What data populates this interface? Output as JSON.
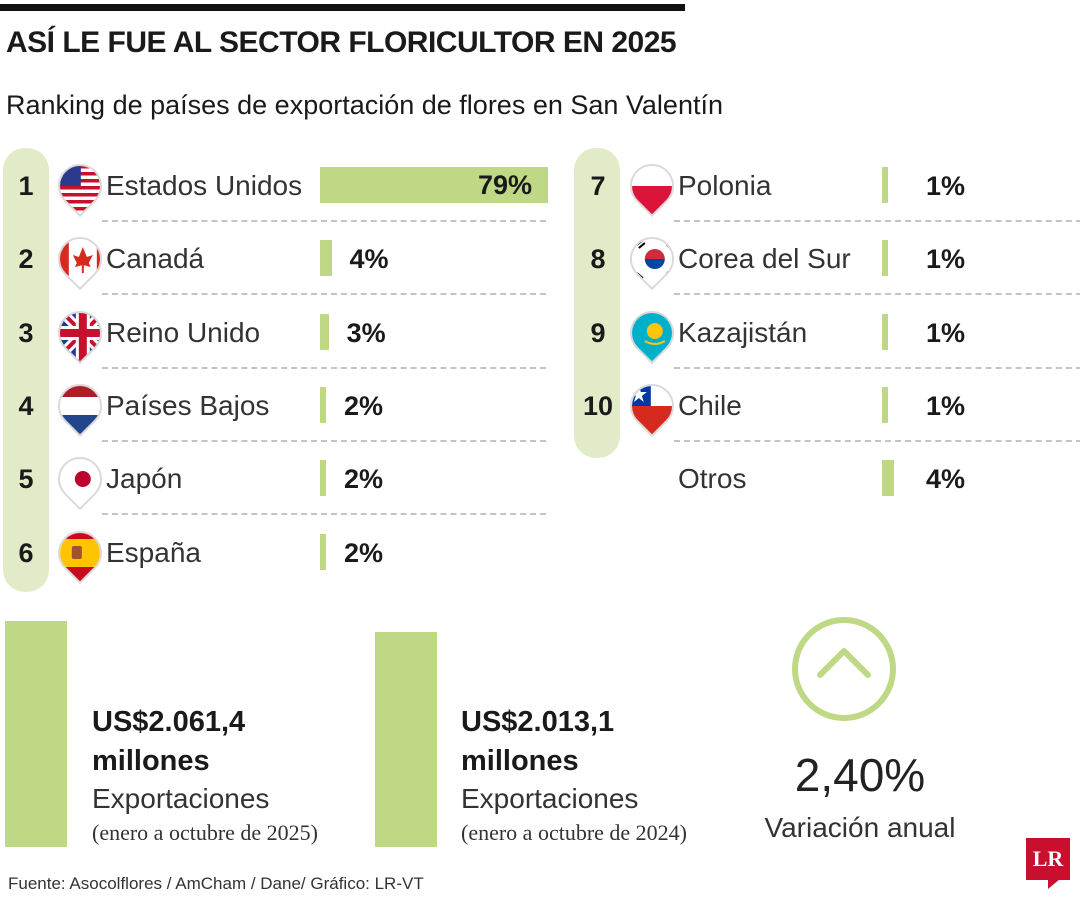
{
  "title": "ASÍ LE FUE AL SECTOR FLORICULTOR EN 2025",
  "subtitle": "Ranking de países de exportación de flores en San Valentín",
  "chart_data": {
    "type": "bar",
    "title": "ASÍ LE FUE AL SECTOR FLORICULTOR EN 2025",
    "subtitle": "Ranking de países de exportación de flores en San Valentín",
    "unit": "%",
    "items": [
      {
        "rank": "1",
        "country": "Estados Unidos",
        "value": 79,
        "label": "79%",
        "flag": "flag-us-icon"
      },
      {
        "rank": "2",
        "country": "Canadá",
        "value": 4,
        "label": "4%",
        "flag": "flag-canada-icon"
      },
      {
        "rank": "3",
        "country": "Reino Unido",
        "value": 3,
        "label": "3%",
        "flag": "flag-uk-icon"
      },
      {
        "rank": "4",
        "country": "Países Bajos",
        "value": 2,
        "label": "2%",
        "flag": "flag-netherlands-icon"
      },
      {
        "rank": "5",
        "country": "Japón",
        "value": 2,
        "label": "2%",
        "flag": "flag-japan-icon"
      },
      {
        "rank": "6",
        "country": "España",
        "value": 2,
        "label": "2%",
        "flag": "flag-spain-icon"
      },
      {
        "rank": "7",
        "country": "Polonia",
        "value": 1,
        "label": "1%",
        "flag": "flag-poland-icon"
      },
      {
        "rank": "8",
        "country": "Corea del Sur",
        "value": 1,
        "label": "1%",
        "flag": "flag-south-korea-icon"
      },
      {
        "rank": "9",
        "country": "Kazajistán",
        "value": 1,
        "label": "1%",
        "flag": "flag-kazakhstan-icon"
      },
      {
        "rank": "10",
        "country": "Chile",
        "value": 1,
        "label": "1%",
        "flag": "flag-chile-icon"
      },
      {
        "rank": "",
        "country": "Otros",
        "value": 4,
        "label": "4%",
        "flag": ""
      }
    ]
  },
  "stats": [
    {
      "amount_line1": "US$2.061,4",
      "amount_line2": "millones",
      "label": "Exportaciones",
      "period": "(enero a octubre de 2025)"
    },
    {
      "amount_line1": "US$2.013,1",
      "amount_line2": "millones",
      "label": "Exportaciones",
      "period": "(enero a octubre de 2024)"
    }
  ],
  "variation": {
    "value": "2,40%",
    "label": "Variación anual",
    "icon": "chevron-up-icon"
  },
  "source": "Fuente: Asocolflores / AmCham / Dane/ Gráfico: LR-VT",
  "logo": "LR",
  "colors": {
    "accent": "#bfd885",
    "rank_column": "#e2ebc8",
    "text": "#1a1a1a",
    "divider": "#c4c4c4",
    "logo": "#c8102e"
  }
}
